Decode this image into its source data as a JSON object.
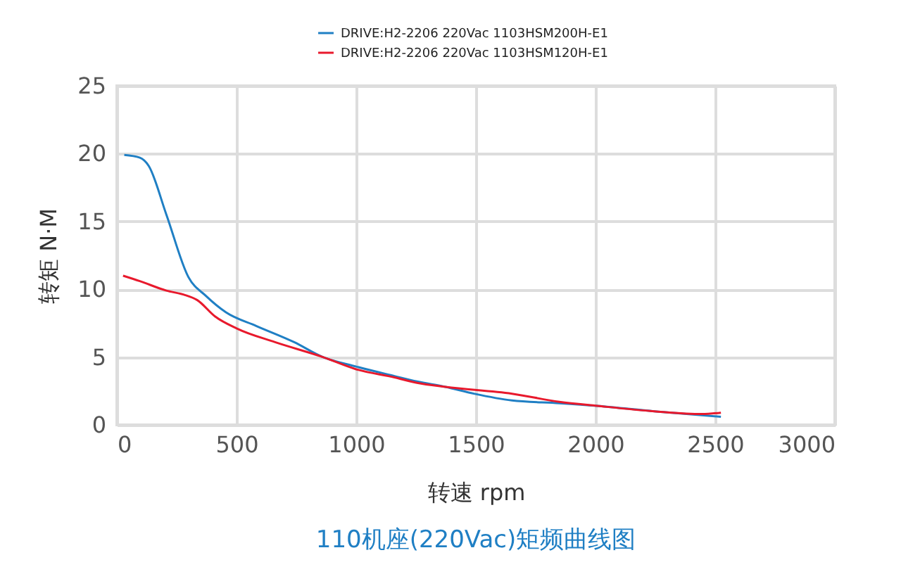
{
  "chart_data": {
    "type": "line",
    "title": "110机座(220Vac)矩频曲线图",
    "xlabel": "转速 rpm",
    "ylabel": "转矩 N·M",
    "xlim": [
      0,
      3000
    ],
    "xticks": [
      0,
      500,
      1000,
      1500,
      2000,
      2500,
      3000
    ],
    "ylim": [
      0,
      25
    ],
    "yticks": [
      0,
      5,
      10,
      15,
      20,
      25
    ],
    "grid": true,
    "legend": "top",
    "line_style": "solid",
    "series": [
      {
        "name": "DRIVE:H2-2206 220Vac 1103HSM200H-E1",
        "color": "#1f7fc4",
        "x": [
          31,
          96,
          133,
          207,
          299,
          373,
          456,
          582,
          741,
          861,
          1000,
          1160,
          1254,
          1373,
          1492,
          1651,
          1849,
          2008,
          2246,
          2524
        ],
        "values": [
          19.9,
          19.7,
          19.1,
          15.5,
          10.9,
          9.5,
          8.3,
          7.3,
          6.1,
          5.0,
          4.3,
          3.6,
          3.2,
          2.8,
          2.3,
          1.8,
          1.6,
          1.4,
          1.0,
          0.6
        ]
      },
      {
        "name": "DRIVE:H2-2206 220Vac 1103HSM120H-E1",
        "color": "#e8192c",
        "x": [
          26,
          96,
          207,
          280,
          336,
          410,
          502,
          661,
          861,
          1000,
          1160,
          1254,
          1373,
          1651,
          1849,
          2008,
          2246,
          2445,
          2524
        ],
        "values": [
          11.0,
          10.6,
          9.9,
          9.6,
          9.2,
          8.0,
          7.1,
          6.1,
          5.0,
          4.1,
          3.5,
          3.1,
          2.8,
          2.3,
          1.7,
          1.4,
          1.0,
          0.8,
          0.9
        ]
      }
    ]
  }
}
